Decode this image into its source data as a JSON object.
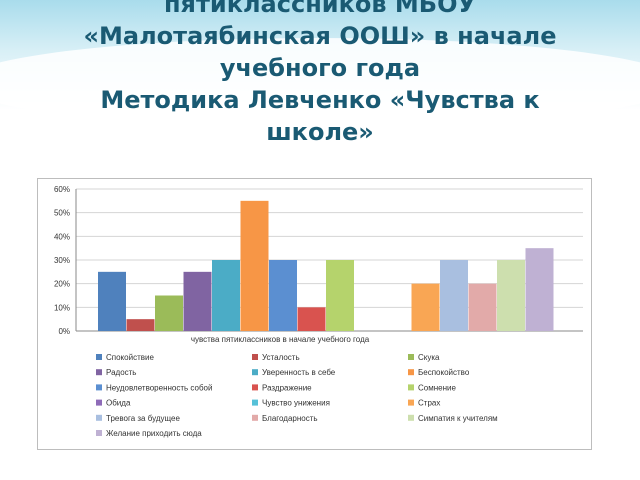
{
  "slide": {
    "title_lines": [
      "пятиклассников МБОУ",
      "«Малотаябинская ООШ» в начале",
      "учебного года",
      "Методика Левченко  «Чувства к",
      "школе»"
    ]
  },
  "chart_data": {
    "type": "bar",
    "xlabel": "чувства пятиклассников в начале учебного года",
    "ylabel": "",
    "ylim": [
      0,
      0.6
    ],
    "yticks": [
      "0%",
      "10%",
      "20%",
      "30%",
      "40%",
      "50%",
      "60%"
    ],
    "grid": true,
    "legend_position": "bottom",
    "series": [
      {
        "name": "Спокойствие",
        "value": 0.25,
        "color": "#4f81bd"
      },
      {
        "name": "Усталость",
        "value": 0.05,
        "color": "#c0504d"
      },
      {
        "name": "Скука",
        "value": 0.15,
        "color": "#9bbb59"
      },
      {
        "name": "Радость",
        "value": 0.25,
        "color": "#8064a2"
      },
      {
        "name": "Уверенность в себе",
        "value": 0.3,
        "color": "#4bacc6"
      },
      {
        "name": "Беспокойство",
        "value": 0.55,
        "color": "#f79646"
      },
      {
        "name": "Неудовлетворенность собой",
        "value": 0.3,
        "color": "#5b8fd1"
      },
      {
        "name": "Раздражение",
        "value": 0.1,
        "color": "#d9534f"
      },
      {
        "name": "Сомнение",
        "value": 0.3,
        "color": "#b5d36c"
      },
      {
        "name": "Обида",
        "value": 0,
        "color": "#8e6bb8"
      },
      {
        "name": "Чувство унижения",
        "value": 0,
        "color": "#56c1d8"
      },
      {
        "name": "Страх",
        "value": 0.2,
        "color": "#f9a654"
      },
      {
        "name": "Тревога за будущее",
        "value": 0.3,
        "color": "#a9bfe0"
      },
      {
        "name": "Благодарность",
        "value": 0.2,
        "color": "#e2aaa9"
      },
      {
        "name": "Симпатия к учителям",
        "value": 0.3,
        "color": "#cddfae"
      },
      {
        "name": "Желание приходить сюда",
        "value": 0.35,
        "color": "#bfb1d3"
      }
    ]
  }
}
